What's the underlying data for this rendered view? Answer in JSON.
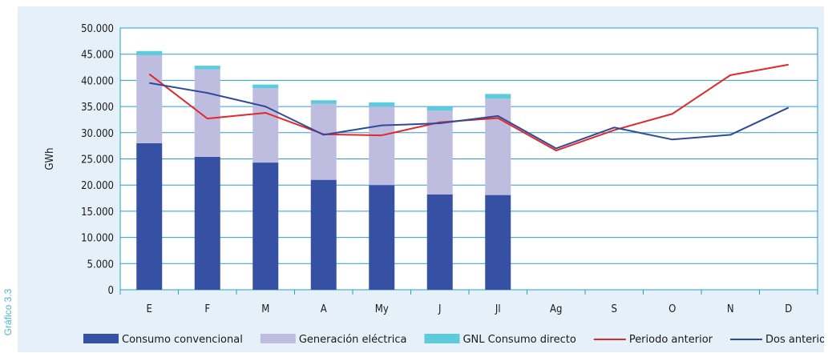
{
  "side_label": "Gráfico 3.3",
  "chart_data": {
    "type": "bar",
    "stacked": true,
    "ylabel": "GWh",
    "ylim": [
      0,
      50000
    ],
    "yticks": [
      "0",
      "5.000",
      "10.000",
      "15.000",
      "20.000",
      "25.000",
      "30.000",
      "35.000",
      "40.000",
      "45.000",
      "50.000"
    ],
    "ytick_values": [
      0,
      5000,
      10000,
      15000,
      20000,
      25000,
      30000,
      35000,
      40000,
      45000,
      50000
    ],
    "categories": [
      "E",
      "F",
      "M",
      "A",
      "My",
      "J",
      "Jl",
      "Ag",
      "S",
      "O",
      "N",
      "D"
    ],
    "grid": true,
    "legend_position": "bottom",
    "bar_series": [
      {
        "name": "Consumo convencional",
        "color": "#3651a3",
        "values": [
          28000,
          25400,
          24300,
          21000,
          20000,
          18200,
          18100,
          null,
          null,
          null,
          null,
          null
        ]
      },
      {
        "name": "Generación eléctrica",
        "color": "#bebde0",
        "values": [
          16800,
          16700,
          14200,
          14500,
          15000,
          16000,
          18400,
          null,
          null,
          null,
          null,
          null
        ]
      },
      {
        "name": "GNL Consumo directo",
        "color": "#5ccbdc",
        "values": [
          800,
          700,
          700,
          700,
          800,
          700,
          900,
          null,
          null,
          null,
          null,
          null
        ]
      }
    ],
    "line_series": [
      {
        "name": "Periodo anterior",
        "color": "#e3282b",
        "values": [
          41200,
          32700,
          33800,
          29700,
          29500,
          32000,
          32800,
          26600,
          30500,
          33600,
          41000,
          43000
        ]
      },
      {
        "name": "Dos anteriores",
        "color": "#2f4a9a",
        "values": [
          39500,
          37600,
          35000,
          29600,
          31400,
          31800,
          33200,
          27000,
          31000,
          28700,
          29600,
          34800
        ]
      }
    ]
  }
}
